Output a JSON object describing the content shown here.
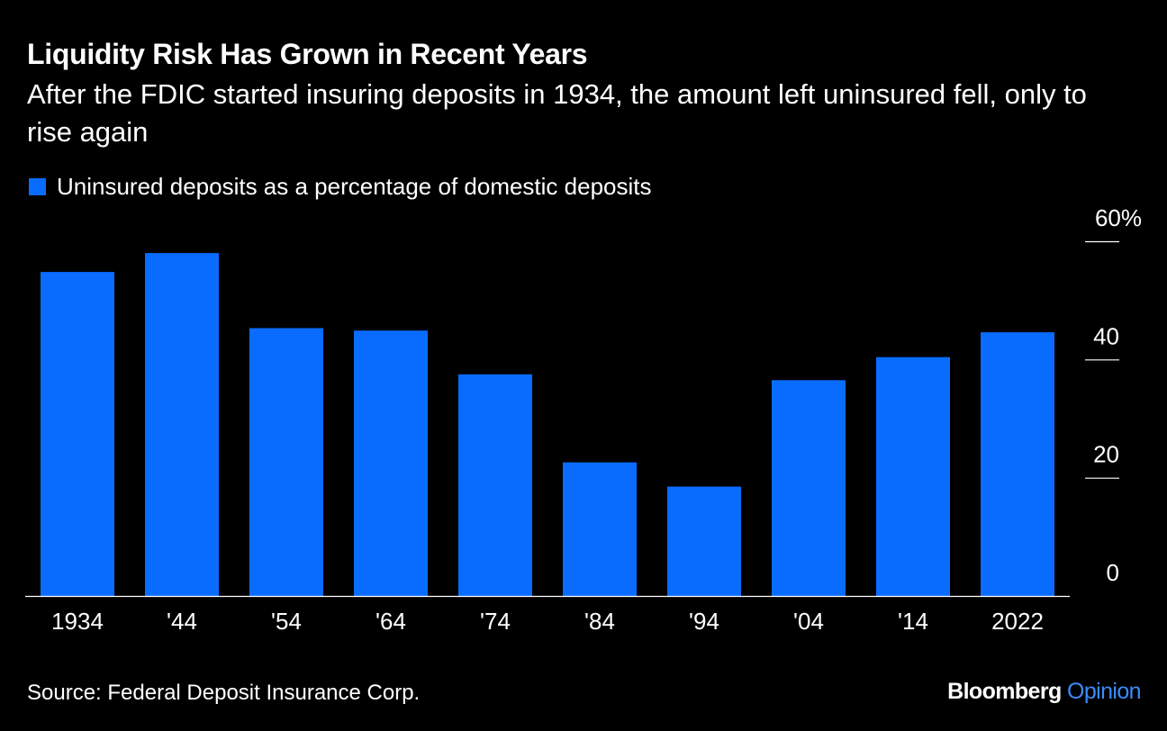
{
  "header": {
    "title": "Liquidity Risk Has Grown in Recent Years",
    "subtitle": "After the FDIC started insuring deposits in 1934, the amount left uninsured fell, only to rise again"
  },
  "footer": {
    "source": "Source: Federal Deposit Insurance Corp.",
    "brand_name": "Bloomberg",
    "brand_product": "Opinion"
  },
  "colors": {
    "background": "#000000",
    "bar": "#0a6cff",
    "text": "#ffffff",
    "gridline": "#ffffff",
    "brand_accent": "#3b8cff"
  },
  "chart_data": {
    "type": "bar",
    "categories": [
      "1934",
      "'44",
      "'54",
      "'64",
      "'74",
      "'84",
      "'94",
      "'04",
      "'14",
      "2022"
    ],
    "series": [
      {
        "name": "Uninsured deposits as a percentage of domestic deposits",
        "values": [
          54.8,
          58.0,
          45.3,
          44.9,
          37.5,
          22.6,
          18.5,
          36.5,
          40.4,
          44.6
        ]
      }
    ],
    "ylim": [
      0,
      60
    ],
    "yticks": [
      0,
      20,
      40,
      60
    ],
    "ytick_labels": [
      "0",
      "20",
      "40",
      "60%"
    ],
    "y_axis_position": "right",
    "grid": false,
    "legend_position": "top-left"
  }
}
